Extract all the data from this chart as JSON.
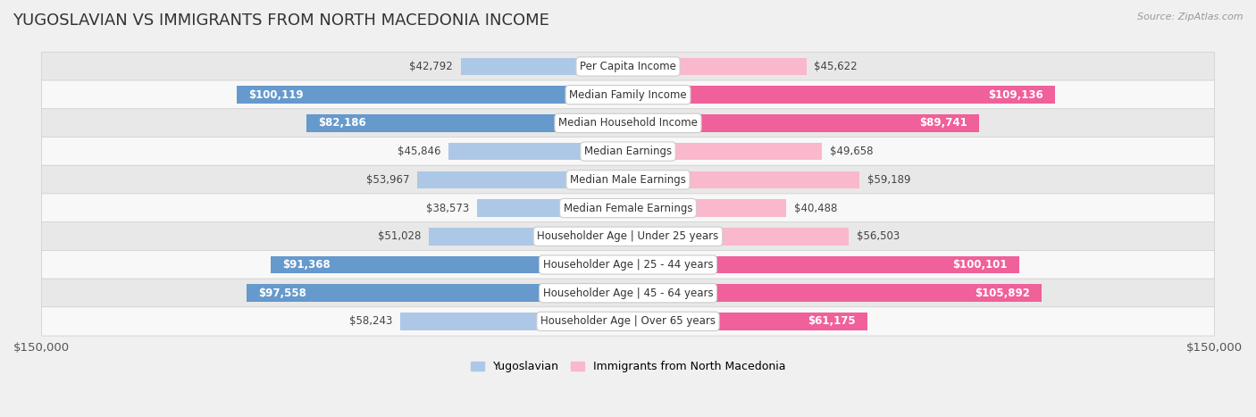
{
  "title": "YUGOSLAVIAN VS IMMIGRANTS FROM NORTH MACEDONIA INCOME",
  "source": "Source: ZipAtlas.com",
  "categories": [
    "Per Capita Income",
    "Median Family Income",
    "Median Household Income",
    "Median Earnings",
    "Median Male Earnings",
    "Median Female Earnings",
    "Householder Age | Under 25 years",
    "Householder Age | 25 - 44 years",
    "Householder Age | 45 - 64 years",
    "Householder Age | Over 65 years"
  ],
  "yugoslavian_values": [
    42792,
    100119,
    82186,
    45846,
    53967,
    38573,
    51028,
    91368,
    97558,
    58243
  ],
  "macedonia_values": [
    45622,
    109136,
    89741,
    49658,
    59189,
    40488,
    56503,
    100101,
    105892,
    61175
  ],
  "max_value": 150000,
  "blue_light": "#adc8e6",
  "blue_dark": "#6699cc",
  "pink_light": "#f9b8cb",
  "pink_dark": "#f0609a",
  "label_blue": "Yugoslavian",
  "label_pink": "Immigrants from North Macedonia",
  "bg_color": "#f0f0f0",
  "row_even_bg": "#e8e8e8",
  "row_odd_bg": "#f8f8f8",
  "bar_height": 0.62,
  "title_fontsize": 13,
  "tick_fontsize": 9.5,
  "cat_fontsize": 8.5,
  "value_fontsize": 8.5,
  "legend_fontsize": 9,
  "white_threshold": 60000
}
